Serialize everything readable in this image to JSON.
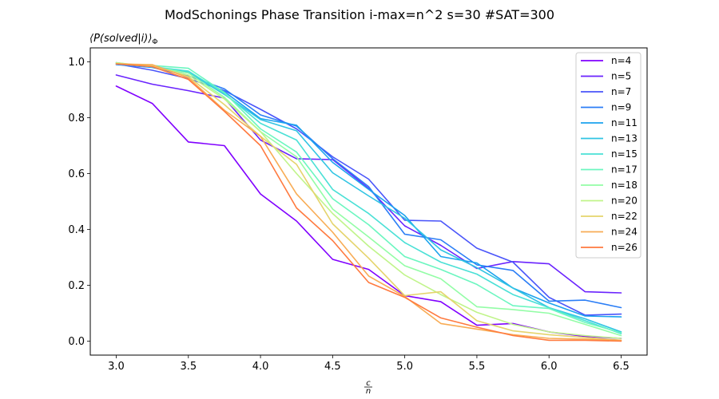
{
  "chart_data": {
    "type": "line",
    "title": "ModSchonings Phase Transition  i-max=n^2 s=30 #SAT=300",
    "ylabel": "⟨P(solved|i)⟩",
    "ylabel_sub": "Φ",
    "xlabel_num": "c",
    "xlabel_den": "n",
    "xlim": [
      2.82,
      6.68
    ],
    "ylim": [
      -0.05,
      1.05
    ],
    "xticks": [
      3.0,
      3.5,
      4.0,
      4.5,
      5.0,
      5.5,
      6.0,
      6.5
    ],
    "xtick_labels": [
      "3.0",
      "3.5",
      "4.0",
      "4.5",
      "5.0",
      "5.5",
      "6.0",
      "6.5"
    ],
    "yticks": [
      0.0,
      0.2,
      0.4,
      0.6,
      0.8,
      1.0
    ],
    "ytick_labels": [
      "0.0",
      "0.2",
      "0.4",
      "0.6",
      "0.8",
      "1.0"
    ],
    "grid": false,
    "legend": "top-right",
    "x": [
      3.0,
      3.25,
      3.5,
      3.75,
      4.0,
      4.25,
      4.5,
      4.75,
      5.0,
      5.25,
      5.5,
      5.75,
      6.0,
      6.25,
      6.5
    ],
    "series": [
      {
        "name": "n=4",
        "color": "#8000ff",
        "values": [
          0.913,
          0.851,
          0.713,
          0.7,
          0.527,
          0.43,
          0.293,
          0.257,
          0.163,
          0.141,
          0.057,
          0.063,
          0.033,
          0.017,
          0.01
        ]
      },
      {
        "name": "n=5",
        "color": "#6a23fe",
        "values": [
          0.953,
          0.92,
          0.897,
          0.87,
          0.72,
          0.653,
          0.65,
          0.547,
          0.413,
          0.343,
          0.26,
          0.285,
          0.277,
          0.177,
          0.173
        ]
      },
      {
        "name": "n=7",
        "color": "#4a55fa",
        "values": [
          0.993,
          0.97,
          0.94,
          0.897,
          0.83,
          0.76,
          0.66,
          0.58,
          0.433,
          0.43,
          0.333,
          0.283,
          0.157,
          0.093,
          0.097
        ]
      },
      {
        "name": "n=9",
        "color": "#2b7ef6",
        "values": [
          0.99,
          0.98,
          0.95,
          0.903,
          0.81,
          0.77,
          0.653,
          0.553,
          0.383,
          0.363,
          0.273,
          0.253,
          0.143,
          0.147,
          0.12
        ]
      },
      {
        "name": "n=11",
        "color": "#1ca3ee",
        "values": [
          0.997,
          0.98,
          0.96,
          0.893,
          0.797,
          0.773,
          0.64,
          0.543,
          0.45,
          0.303,
          0.28,
          0.19,
          0.137,
          0.09,
          0.087
        ]
      },
      {
        "name": "n=13",
        "color": "#30c4e3",
        "values": [
          0.993,
          0.983,
          0.963,
          0.883,
          0.793,
          0.753,
          0.603,
          0.52,
          0.44,
          0.327,
          0.263,
          0.19,
          0.12,
          0.08,
          0.033
        ]
      },
      {
        "name": "n=15",
        "color": "#4ae0d6",
        "values": [
          0.993,
          0.983,
          0.967,
          0.887,
          0.78,
          0.72,
          0.543,
          0.457,
          0.353,
          0.283,
          0.24,
          0.167,
          0.12,
          0.073,
          0.027
        ]
      },
      {
        "name": "n=17",
        "color": "#6cf6c0",
        "values": [
          0.993,
          0.987,
          0.977,
          0.89,
          0.76,
          0.677,
          0.51,
          0.417,
          0.303,
          0.257,
          0.203,
          0.127,
          0.117,
          0.067,
          0.03
        ]
      },
      {
        "name": "n=18",
        "color": "#93fda6",
        "values": [
          0.993,
          0.983,
          0.96,
          0.873,
          0.75,
          0.66,
          0.473,
          0.373,
          0.27,
          0.223,
          0.123,
          0.113,
          0.1,
          0.06,
          0.02
        ]
      },
      {
        "name": "n=20",
        "color": "#c0f48a",
        "values": [
          0.997,
          0.983,
          0.953,
          0.867,
          0.75,
          0.6,
          0.457,
          0.34,
          0.237,
          0.167,
          0.103,
          0.06,
          0.033,
          0.02,
          0.01
        ]
      },
      {
        "name": "n=22",
        "color": "#e5d46c",
        "values": [
          0.993,
          0.987,
          0.947,
          0.847,
          0.733,
          0.633,
          0.42,
          0.297,
          0.163,
          0.177,
          0.073,
          0.037,
          0.023,
          0.013,
          0.003
        ]
      },
      {
        "name": "n=24",
        "color": "#f8ac55",
        "values": [
          0.993,
          0.99,
          0.943,
          0.827,
          0.733,
          0.527,
          0.39,
          0.233,
          0.16,
          0.063,
          0.043,
          0.023,
          0.01,
          0.007,
          0.003
        ]
      },
      {
        "name": "n=26",
        "color": "#ff7a3f",
        "values": [
          0.993,
          0.983,
          0.937,
          0.823,
          0.7,
          0.477,
          0.36,
          0.21,
          0.157,
          0.083,
          0.05,
          0.02,
          0.003,
          0.003,
          0.0
        ]
      }
    ]
  }
}
